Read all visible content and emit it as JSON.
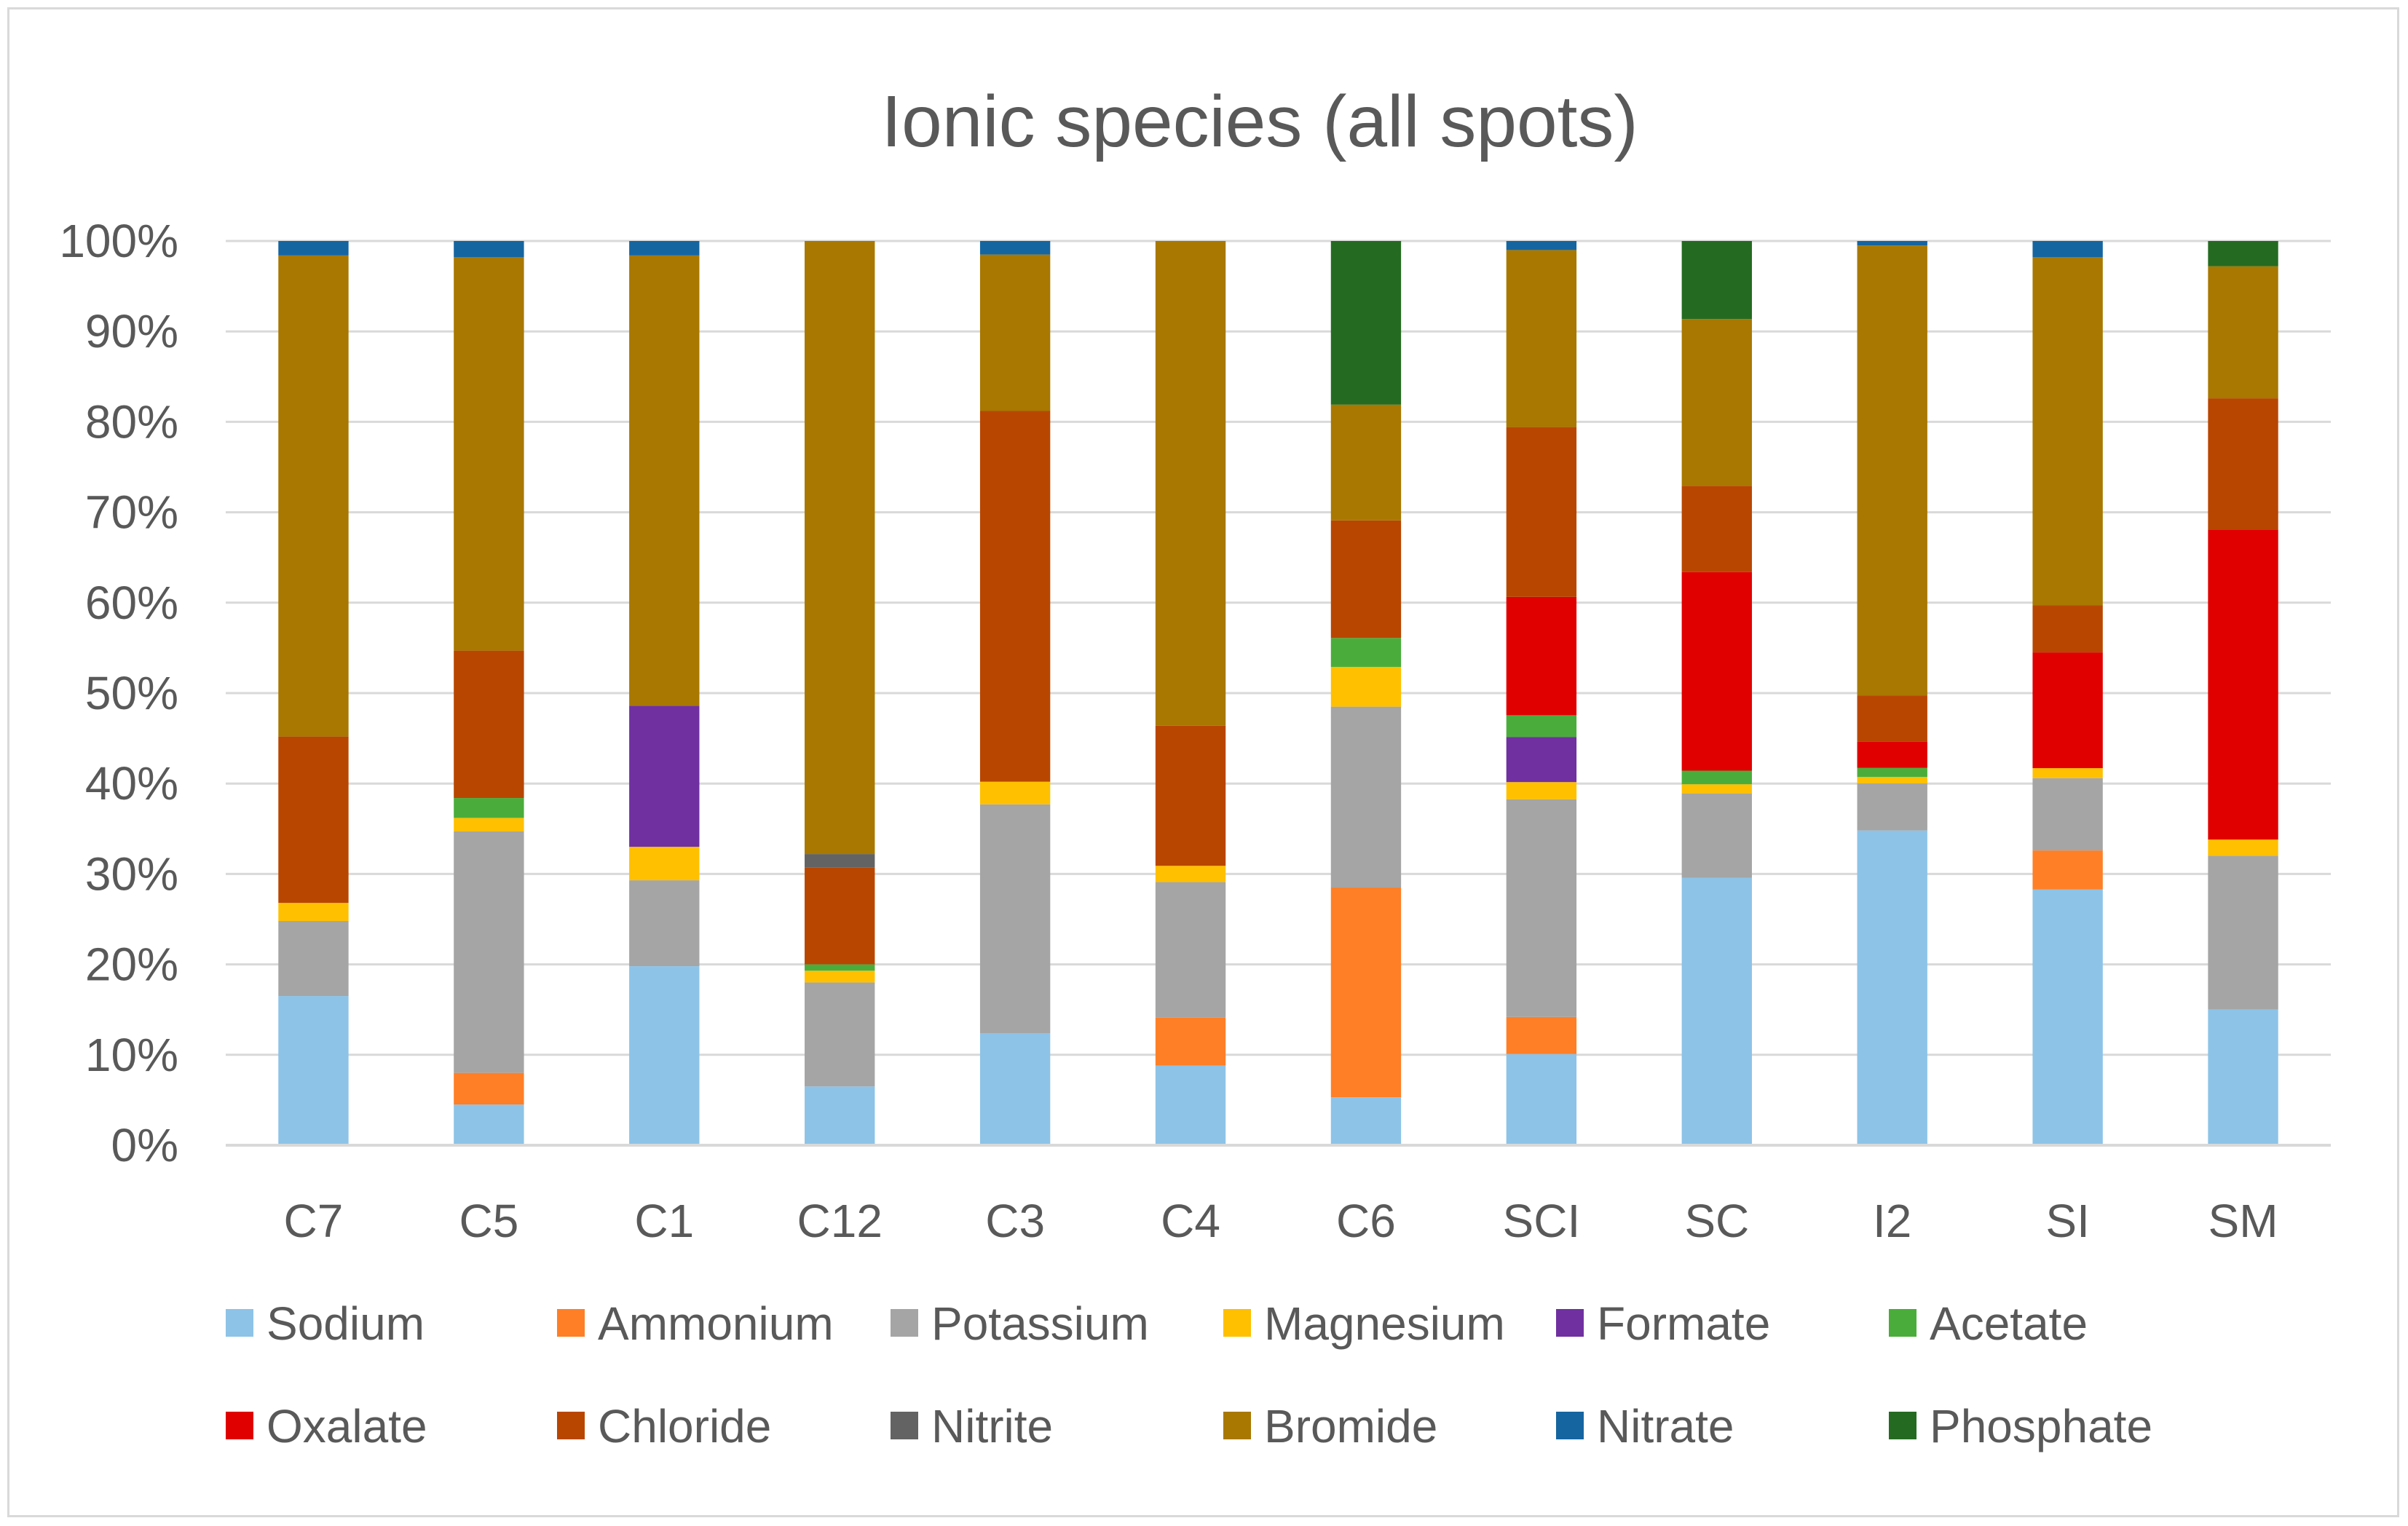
{
  "chart_data": {
    "type": "bar",
    "stacked": "percent",
    "title": "Ionic species (all spots)",
    "xlabel": "",
    "ylabel": "",
    "ylim": [
      0,
      100
    ],
    "yticks": [
      "0%",
      "10%",
      "20%",
      "30%",
      "40%",
      "50%",
      "60%",
      "70%",
      "80%",
      "90%",
      "100%"
    ],
    "grid": "horizontal",
    "legend_position": "bottom",
    "categories": [
      "C7",
      "C5",
      "C1",
      "C12",
      "C3",
      "C4",
      "C6",
      "SCI",
      "SC",
      "I2",
      "SI",
      "SM"
    ],
    "series": [
      {
        "name": "Sodium",
        "color": "#8dc3e7",
        "values": [
          16.5,
          4.5,
          19.8,
          6.5,
          12.4,
          8.8,
          5.3,
          10.1,
          29.5,
          34.7,
          28.3,
          15.0
        ]
      },
      {
        "name": "Ammonium",
        "color": "#ff7f27",
        "values": [
          0,
          3.5,
          0,
          0,
          0,
          5.3,
          23.2,
          4.1,
          0,
          0,
          4.3,
          0
        ]
      },
      {
        "name": "Potassium",
        "color": "#a5a5a5",
        "values": [
          8.3,
          26.7,
          9.5,
          11.5,
          25.3,
          15.0,
          20.0,
          24.1,
          9.3,
          5.2,
          8.0,
          17.0
        ]
      },
      {
        "name": "Magnesium",
        "color": "#ffc000",
        "values": [
          2.0,
          1.5,
          3.7,
          1.3,
          2.5,
          1.8,
          4.4,
          1.9,
          1.0,
          0.7,
          1.1,
          1.8
        ]
      },
      {
        "name": "Formate",
        "color": "#7030a0",
        "values": [
          0,
          0,
          15.6,
          0,
          0,
          0,
          0,
          5.0,
          0,
          0,
          0,
          0
        ]
      },
      {
        "name": "Acetate",
        "color": "#4aad3b",
        "values": [
          0,
          2.2,
          0,
          0.7,
          0,
          0,
          3.2,
          2.4,
          1.5,
          1.0,
          0,
          0
        ]
      },
      {
        "name": "Oxalate",
        "color": "#e00000",
        "values": [
          0,
          0,
          0,
          0,
          0,
          0,
          0,
          13.1,
          21.9,
          2.9,
          12.8,
          34.3
        ]
      },
      {
        "name": "Chloride",
        "color": "#b84600",
        "values": [
          18.4,
          16.3,
          0,
          10.7,
          41.0,
          15.5,
          13.0,
          18.8,
          9.5,
          5.1,
          5.2,
          14.5
        ]
      },
      {
        "name": "Nitrite",
        "color": "#636363",
        "values": [
          0,
          0,
          0,
          1.5,
          0,
          0,
          0,
          0,
          0,
          0,
          0,
          0
        ]
      },
      {
        "name": "Bromide",
        "color": "#a87800",
        "values": [
          53.2,
          43.5,
          49.8,
          67.8,
          17.3,
          53.6,
          12.8,
          19.6,
          18.4,
          49.6,
          38.5,
          14.6
        ]
      },
      {
        "name": "Nitrate",
        "color": "#1565a0",
        "values": [
          1.6,
          1.8,
          1.6,
          0,
          1.5,
          0,
          0,
          1.0,
          0,
          0.5,
          1.8,
          0
        ]
      },
      {
        "name": "Phosphate",
        "color": "#246b21",
        "values": [
          0,
          0,
          0,
          0,
          0,
          0,
          18.1,
          0,
          8.6,
          0,
          0,
          2.8
        ]
      }
    ]
  }
}
